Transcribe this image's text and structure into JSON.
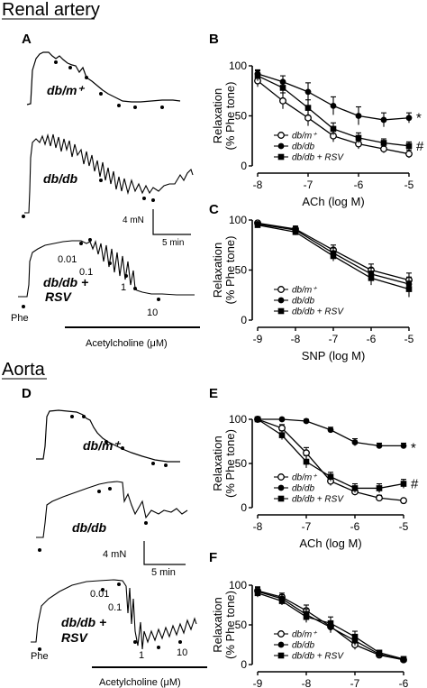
{
  "sections": {
    "renal": "Renal artery",
    "aorta": "Aorta"
  },
  "panel_letters": [
    "A",
    "B",
    "C",
    "D",
    "E",
    "F"
  ],
  "traces": {
    "renal": {
      "labels": [
        [
          "db/m⁺"
        ],
        [
          "db/db"
        ],
        [
          "db/db +",
          "RSV"
        ]
      ],
      "doses": [
        "0.01",
        "0.1",
        "1",
        "10"
      ],
      "phe": "Phe",
      "drug": "Acetylcholine (μM)",
      "scale_force": "4 mN",
      "scale_time": "5 min"
    },
    "aorta": {
      "labels": [
        [
          "db/m⁺"
        ],
        [
          "db/db"
        ],
        [
          "db/db +",
          "RSV"
        ]
      ],
      "doses": [
        "0.01",
        "0.1",
        "1",
        "10"
      ],
      "phe": "Phe",
      "drug": "Acetylcholine (μM)",
      "scale_force": "4 mN",
      "scale_time": "5 min"
    }
  },
  "chart_data": [
    {
      "panel": "B",
      "type": "line",
      "xlabel": "ACh (log M)",
      "ylabel": "Relaxation",
      "ylabel2": "(% Phe tone)",
      "xlim": [
        -8,
        -5
      ],
      "ylim": [
        0,
        100
      ],
      "xticks": [
        -8,
        -7,
        -6,
        -5
      ],
      "yticks": [
        0,
        50,
        100
      ],
      "x": [
        -8,
        -7.5,
        -7,
        -6.5,
        -6,
        -5.5,
        -5
      ],
      "legend": [
        "db/m⁺",
        "db/db",
        "db/db + RSV"
      ],
      "annotations": [
        "*",
        "#"
      ],
      "series": [
        {
          "name": "db/m⁺",
          "marker": "open",
          "values": [
            85,
            65,
            48,
            30,
            22,
            17,
            12
          ],
          "err": [
            6,
            8,
            8,
            6,
            5,
            4,
            4
          ]
        },
        {
          "name": "db/db",
          "marker": "filled",
          "values": [
            92,
            84,
            74,
            60,
            50,
            46,
            48
          ],
          "err": [
            4,
            6,
            9,
            9,
            9,
            7,
            5
          ]
        },
        {
          "name": "db/db + RSV",
          "marker": "square",
          "values": [
            90,
            78,
            58,
            37,
            28,
            23,
            20
          ],
          "err": [
            5,
            7,
            8,
            6,
            5,
            4,
            4
          ]
        }
      ],
      "sig_y": [
        48,
        20
      ]
    },
    {
      "panel": "C",
      "type": "line",
      "xlabel": "SNP (log M)",
      "ylabel": "Relaxation",
      "ylabel2": "(% Phe tone)",
      "xlim": [
        -9,
        -5
      ],
      "ylim": [
        0,
        100
      ],
      "xticks": [
        -9,
        -8,
        -7,
        -6,
        -5
      ],
      "yticks": [
        0,
        50,
        100
      ],
      "x": [
        -9,
        -8,
        -7,
        -6,
        -5
      ],
      "legend": [
        "db/m⁺",
        "db/db",
        "db/db + RSV"
      ],
      "annotations": [],
      "series": [
        {
          "name": "db/m⁺",
          "marker": "open",
          "values": [
            97,
            91,
            70,
            50,
            40
          ],
          "err": [
            2,
            3,
            5,
            6,
            7
          ]
        },
        {
          "name": "db/db",
          "marker": "filled",
          "values": [
            96,
            90,
            67,
            46,
            36
          ],
          "err": [
            2,
            3,
            5,
            6,
            7
          ]
        },
        {
          "name": "db/db + RSV",
          "marker": "square",
          "values": [
            95,
            88,
            64,
            42,
            31
          ],
          "err": [
            2,
            3,
            5,
            7,
            8
          ]
        }
      ],
      "sig_y": []
    },
    {
      "panel": "E",
      "type": "line",
      "xlabel": "ACh (log M)",
      "ylabel": "Relaxation",
      "ylabel2": "(% Phe tone)",
      "xlim": [
        -8,
        -5
      ],
      "ylim": [
        0,
        100
      ],
      "xticks": [
        -8,
        -7,
        -6,
        -5
      ],
      "yticks": [
        0,
        50,
        100
      ],
      "x": [
        -8,
        -7.5,
        -7,
        -6.5,
        -6,
        -5.5,
        -5
      ],
      "legend": [
        "db/m⁺",
        "db/db",
        "db/db + RSV"
      ],
      "annotations": [
        "*",
        "#"
      ],
      "series": [
        {
          "name": "db/m⁺",
          "marker": "open",
          "values": [
            100,
            90,
            62,
            30,
            18,
            11,
            8
          ],
          "err": [
            1,
            4,
            6,
            5,
            4,
            3,
            2
          ]
        },
        {
          "name": "db/db",
          "marker": "filled",
          "values": [
            100,
            100,
            98,
            88,
            74,
            70,
            70
          ],
          "err": [
            1,
            1,
            2,
            3,
            4,
            3,
            3
          ]
        },
        {
          "name": "db/db + RSV",
          "marker": "square",
          "values": [
            100,
            82,
            52,
            35,
            22,
            22,
            27
          ],
          "err": [
            1,
            5,
            7,
            5,
            5,
            5,
            5
          ]
        }
      ],
      "sig_y": [
        68,
        27
      ]
    },
    {
      "panel": "F",
      "type": "line",
      "xlabel": "SNP (log M)",
      "ylabel": "Relaxation",
      "ylabel2": "(% Phe tone)",
      "xlim": [
        -9,
        -6
      ],
      "ylim": [
        0,
        100
      ],
      "xticks": [
        -9,
        -8,
        -7,
        -6
      ],
      "yticks": [
        0,
        50,
        100
      ],
      "x": [
        -9,
        -8.5,
        -8,
        -7.5,
        -7,
        -6.5,
        -6
      ],
      "legend": [
        "db/m⁺",
        "db/db",
        "db/db + RSV"
      ],
      "annotations": [],
      "series": [
        {
          "name": "db/m⁺",
          "marker": "open",
          "values": [
            93,
            85,
            68,
            48,
            25,
            12,
            6
          ],
          "err": [
            5,
            5,
            7,
            7,
            6,
            3,
            2
          ]
        },
        {
          "name": "db/db",
          "marker": "filled",
          "values": [
            92,
            83,
            63,
            47,
            30,
            13,
            6
          ],
          "err": [
            5,
            5,
            7,
            7,
            6,
            3,
            2
          ]
        },
        {
          "name": "db/db + RSV",
          "marker": "square",
          "values": [
            90,
            80,
            60,
            52,
            35,
            15,
            7
          ],
          "err": [
            5,
            5,
            7,
            8,
            7,
            3,
            2
          ]
        }
      ],
      "sig_y": []
    }
  ]
}
